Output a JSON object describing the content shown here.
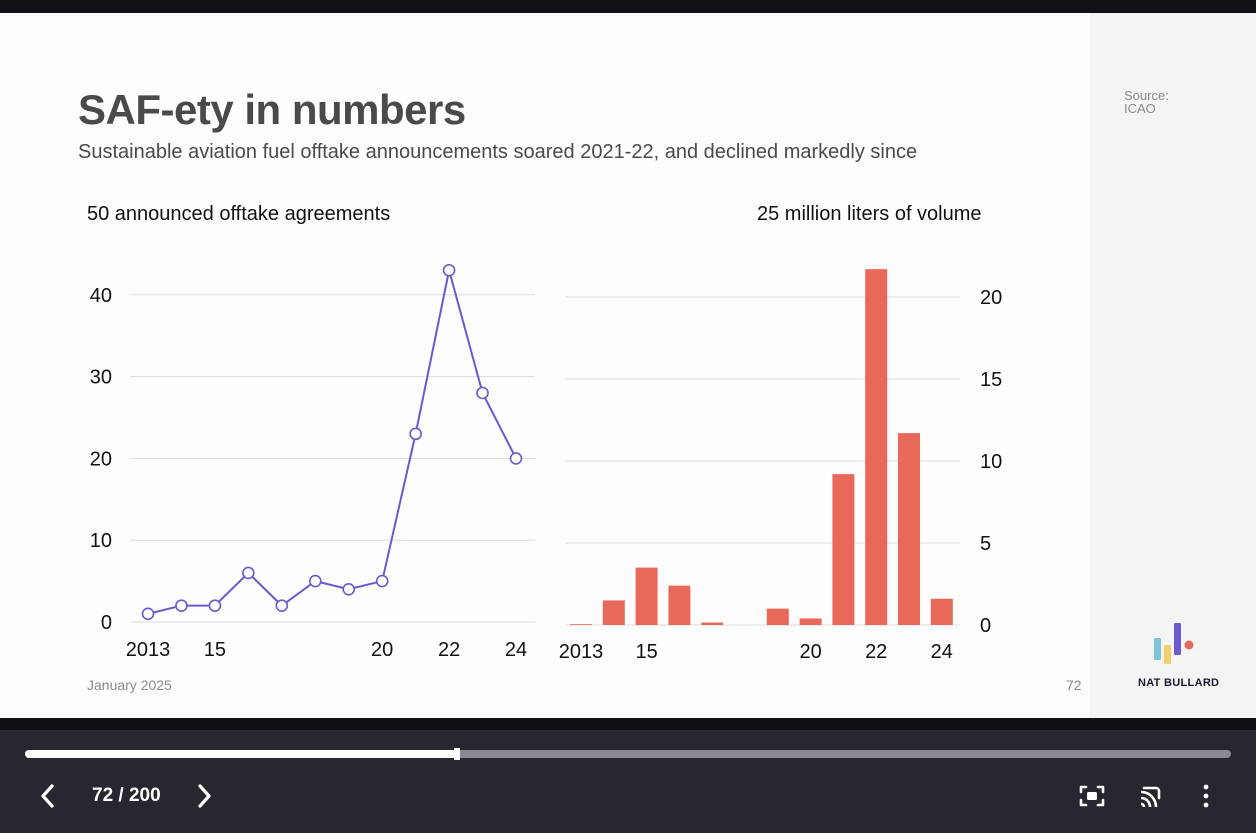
{
  "slide": {
    "title": "SAF-ety in numbers",
    "subtitle": "Sustainable aviation fuel offtake announcements soared 2021-22, and declined markedly since",
    "source": "Source: ICAO",
    "date": "January 2025",
    "page_number": "72",
    "brand": "NAT BULLARD"
  },
  "chart_data": [
    {
      "type": "line",
      "title": "50 announced offtake agreements",
      "x": [
        2013,
        2014,
        2015,
        2016,
        2017,
        2018,
        2019,
        2020,
        2021,
        2022,
        2023,
        2024
      ],
      "x_tick_labels": [
        "2013",
        "15",
        "20",
        "22",
        "24"
      ],
      "x_tick_values": [
        2013,
        2015,
        2020,
        2022,
        2024
      ],
      "y_ticks": [
        0,
        10,
        20,
        30,
        40
      ],
      "ylim": [
        0,
        45
      ],
      "series": [
        {
          "values": [
            1,
            2,
            2,
            6,
            2,
            5,
            4,
            5,
            23,
            43,
            28,
            20
          ],
          "color": "#6a5acd"
        }
      ],
      "grid": true,
      "y_axis_side": "left"
    },
    {
      "type": "bar",
      "title": "25 million liters of volume",
      "x": [
        2013,
        2014,
        2015,
        2016,
        2017,
        2018,
        2019,
        2020,
        2021,
        2022,
        2023,
        2024
      ],
      "x_tick_labels": [
        "2013",
        "15",
        "20",
        "22",
        "24"
      ],
      "x_tick_values": [
        2013,
        2015,
        2020,
        2022,
        2024
      ],
      "y_ticks": [
        0,
        5,
        10,
        15,
        20
      ],
      "ylim": [
        0,
        22
      ],
      "series": [
        {
          "values": [
            0.05,
            1.5,
            3.5,
            2.4,
            0.15,
            0,
            1.0,
            0.4,
            9.2,
            21.7,
            11.7,
            1.6
          ],
          "color": "#e8695a"
        }
      ],
      "grid": true,
      "y_axis_side": "right"
    }
  ],
  "controls": {
    "page_counter": "72 / 200",
    "progress": 0.358,
    "prev_icon": "chevron-left-icon",
    "next_icon": "chevron-right-icon",
    "fullscreen_icon": "fullscreen-icon",
    "cast_icon": "cast-icon",
    "more_icon": "more-vertical-icon"
  }
}
